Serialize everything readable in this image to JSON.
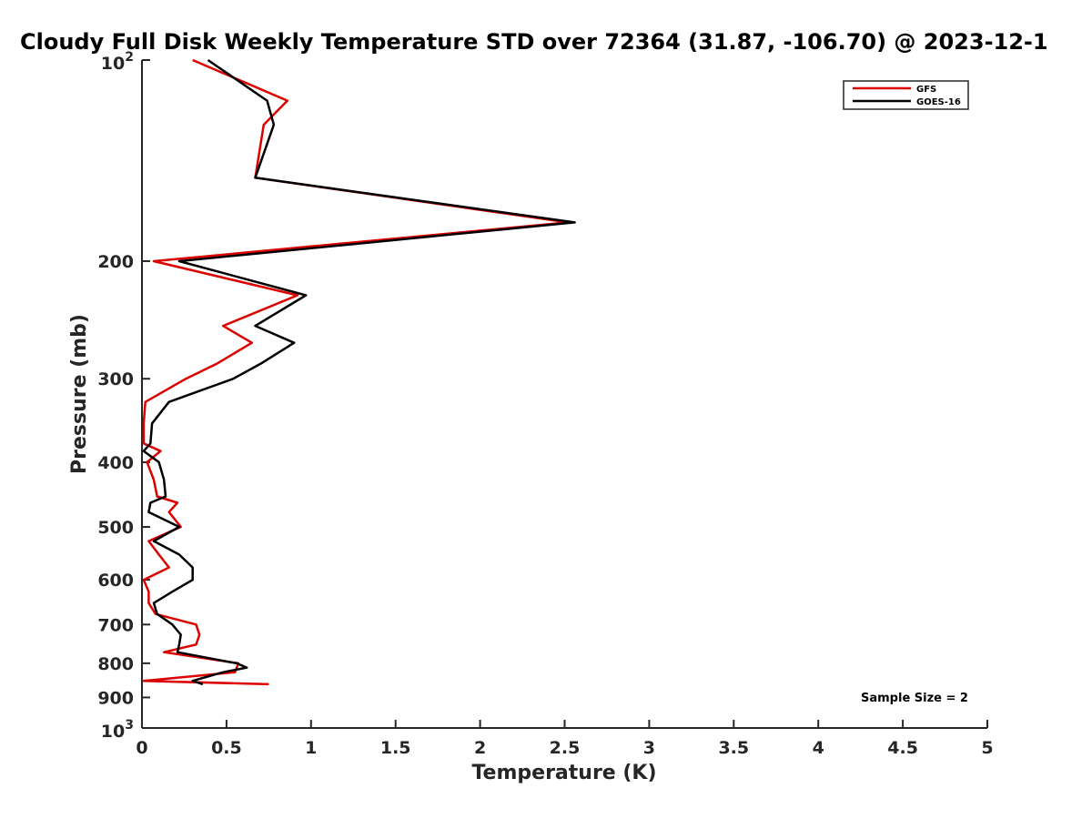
{
  "chart_data": {
    "type": "line",
    "title": "Cloudy Full Disk Weekly Temperature STD over 72364 (31.87, -106.70) @ 2023-12-1",
    "xlabel": "Temperature (K)",
    "ylabel": "Pressure (mb)",
    "xlim": [
      0,
      5
    ],
    "ylim": [
      100,
      1000
    ],
    "y_scale": "log",
    "y_reversed": true,
    "x_ticks": [
      "0",
      "0.5",
      "1",
      "1.5",
      "2",
      "2.5",
      "3",
      "3.5",
      "4",
      "4.5",
      "5"
    ],
    "y_ticks": [
      {
        "value": 100,
        "base": "10",
        "exp": "2"
      },
      {
        "value": 200,
        "label": "200"
      },
      {
        "value": 300,
        "label": "300"
      },
      {
        "value": 400,
        "label": "400"
      },
      {
        "value": 500,
        "label": "500"
      },
      {
        "value": 600,
        "label": "600"
      },
      {
        "value": 700,
        "label": "700"
      },
      {
        "value": 800,
        "label": "800"
      },
      {
        "value": 900,
        "label": "900"
      },
      {
        "value": 1000,
        "base": "10",
        "exp": "3"
      }
    ],
    "grid": false,
    "legend_position": "top-right",
    "annotation": "Sample Size = 2",
    "series": [
      {
        "name": "GFS",
        "color": "#dd0000",
        "points": [
          [
            0.3,
            100
          ],
          [
            0.86,
            115
          ],
          [
            0.72,
            125
          ],
          [
            0.67,
            150
          ],
          [
            2.52,
            175
          ],
          [
            0.07,
            200
          ],
          [
            0.92,
            225
          ],
          [
            0.48,
            250
          ],
          [
            0.65,
            265
          ],
          [
            0.44,
            285
          ],
          [
            0.26,
            300
          ],
          [
            0.02,
            325
          ],
          [
            0.01,
            350
          ],
          [
            0.01,
            375
          ],
          [
            0.11,
            385
          ],
          [
            0.03,
            400
          ],
          [
            0.07,
            425
          ],
          [
            0.09,
            450
          ],
          [
            0.21,
            460
          ],
          [
            0.16,
            475
          ],
          [
            0.23,
            500
          ],
          [
            0.04,
            525
          ],
          [
            0.1,
            550
          ],
          [
            0.16,
            575
          ],
          [
            0.01,
            600
          ],
          [
            0.04,
            625
          ],
          [
            0.04,
            650
          ],
          [
            0.08,
            675
          ],
          [
            0.32,
            700
          ],
          [
            0.34,
            725
          ],
          [
            0.32,
            750
          ],
          [
            0.13,
            770
          ],
          [
            0.57,
            800
          ],
          [
            0.55,
            825
          ],
          [
            0.01,
            850
          ],
          [
            0.75,
            860
          ]
        ]
      },
      {
        "name": "GOES-16",
        "color": "#000000",
        "points": [
          [
            0.39,
            100
          ],
          [
            0.74,
            115
          ],
          [
            0.78,
            125
          ],
          [
            0.67,
            150
          ],
          [
            2.56,
            175
          ],
          [
            0.22,
            200
          ],
          [
            0.97,
            225
          ],
          [
            0.67,
            250
          ],
          [
            0.9,
            265
          ],
          [
            0.7,
            285
          ],
          [
            0.54,
            300
          ],
          [
            0.16,
            325
          ],
          [
            0.06,
            350
          ],
          [
            0.05,
            375
          ],
          [
            0.01,
            385
          ],
          [
            0.1,
            400
          ],
          [
            0.13,
            425
          ],
          [
            0.14,
            450
          ],
          [
            0.05,
            460
          ],
          [
            0.04,
            475
          ],
          [
            0.22,
            500
          ],
          [
            0.07,
            525
          ],
          [
            0.22,
            550
          ],
          [
            0.3,
            575
          ],
          [
            0.3,
            600
          ],
          [
            0.18,
            625
          ],
          [
            0.07,
            650
          ],
          [
            0.09,
            675
          ],
          [
            0.18,
            700
          ],
          [
            0.23,
            725
          ],
          [
            0.22,
            750
          ],
          [
            0.21,
            770
          ],
          [
            0.56,
            800
          ],
          [
            0.62,
            812
          ],
          [
            0.48,
            825
          ],
          [
            0.3,
            850
          ],
          [
            0.36,
            860
          ]
        ]
      }
    ]
  }
}
